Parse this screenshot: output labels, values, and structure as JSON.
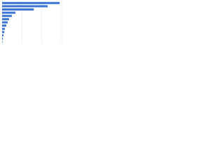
{
  "chart_data": {
    "type": "bar",
    "orientation": "horizontal",
    "categories": [
      null,
      null,
      null,
      null,
      null,
      null,
      null,
      null,
      null,
      null,
      null,
      null,
      null
    ],
    "values": [
      29,
      23,
      16,
      6.7,
      4.9,
      3.5,
      2.8,
      2.1,
      1.4,
      1.1,
      0.7,
      0.4,
      0.2
    ],
    "color": "#3b76d6",
    "xlim": [
      0,
      30
    ],
    "xticks": [
      0,
      10,
      20,
      30
    ],
    "grid": true
  }
}
